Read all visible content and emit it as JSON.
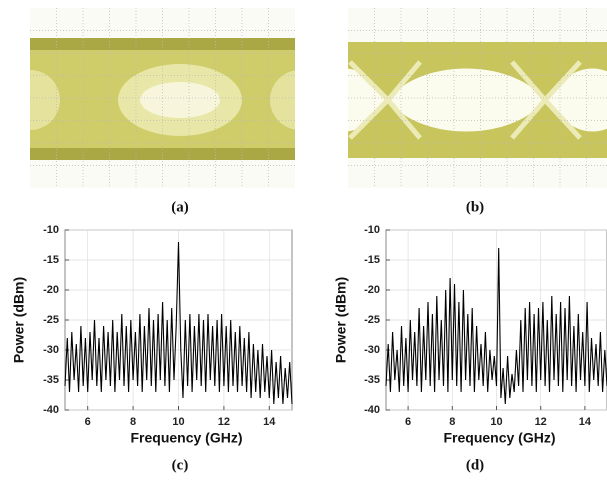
{
  "captions": [
    "(a)",
    "(b)",
    "(c)",
    "(d)"
  ],
  "chart_data": [
    {
      "type": "line",
      "xlabel": "Frequency (GHz)",
      "ylabel": "Power (dBm)",
      "color": "#000000",
      "grid": true,
      "xlim": [
        5,
        15
      ],
      "ylim": [
        -40,
        -10
      ],
      "xticks": [
        6,
        8,
        10,
        12,
        14
      ],
      "yticks": [
        -40,
        -35,
        -30,
        -25,
        -20,
        -15,
        -10
      ],
      "x": [
        5.0,
        5.1,
        5.2,
        5.3,
        5.4,
        5.5,
        5.6,
        5.7,
        5.8,
        5.9,
        6.0,
        6.1,
        6.2,
        6.3,
        6.4,
        6.5,
        6.6,
        6.7,
        6.8,
        6.9,
        7.0,
        7.1,
        7.2,
        7.3,
        7.4,
        7.5,
        7.6,
        7.7,
        7.8,
        7.9,
        8.0,
        8.1,
        8.2,
        8.3,
        8.4,
        8.5,
        8.6,
        8.7,
        8.8,
        8.9,
        9.0,
        9.1,
        9.2,
        9.3,
        9.4,
        9.5,
        9.6,
        9.7,
        9.8,
        9.9,
        10.0,
        10.1,
        10.2,
        10.3,
        10.4,
        10.5,
        10.6,
        10.7,
        10.8,
        10.9,
        11.0,
        11.1,
        11.2,
        11.3,
        11.4,
        11.5,
        11.6,
        11.7,
        11.8,
        11.9,
        12.0,
        12.1,
        12.2,
        12.3,
        12.4,
        12.5,
        12.6,
        12.7,
        12.8,
        12.9,
        13.0,
        13.1,
        13.2,
        13.3,
        13.4,
        13.5,
        13.6,
        13.7,
        13.8,
        13.9,
        14.0,
        14.1,
        14.2,
        14.3,
        14.4,
        14.5,
        14.6,
        14.7,
        14.8,
        14.9,
        15.0
      ],
      "values": [
        -36,
        -28,
        -37,
        -27,
        -35,
        -29,
        -37,
        -26,
        -36,
        -28,
        -37,
        -27,
        -35,
        -25,
        -36,
        -28,
        -37,
        -26,
        -35,
        -27,
        -36,
        -25,
        -37,
        -27,
        -35,
        -24,
        -36,
        -26,
        -37,
        -25,
        -35,
        -27,
        -36,
        -24,
        -37,
        -26,
        -35,
        -23,
        -36,
        -25,
        -37,
        -24,
        -35,
        -22,
        -36,
        -25,
        -37,
        -23,
        -35,
        -26,
        -12,
        -30,
        -38,
        -25,
        -36,
        -24,
        -37,
        -26,
        -35,
        -24,
        -36,
        -25,
        -37,
        -24,
        -35,
        -26,
        -36,
        -25,
        -37,
        -24,
        -36,
        -26,
        -37,
        -25,
        -36,
        -27,
        -37,
        -26,
        -36,
        -28,
        -37,
        -27,
        -38,
        -29,
        -37,
        -30,
        -38,
        -29,
        -37,
        -31,
        -38,
        -30,
        -39,
        -32,
        -38,
        -31,
        -39,
        -33,
        -38,
        -32,
        -39
      ]
    },
    {
      "type": "line",
      "xlabel": "Frequency (GHz)",
      "ylabel": "Power (dBm)",
      "color": "#000000",
      "grid": true,
      "xlim": [
        5,
        15
      ],
      "ylim": [
        -40,
        -10
      ],
      "xticks": [
        6,
        8,
        10,
        12,
        14
      ],
      "yticks": [
        -40,
        -35,
        -30,
        -25,
        -20,
        -15,
        -10
      ],
      "x": [
        5.0,
        5.1,
        5.2,
        5.3,
        5.4,
        5.5,
        5.6,
        5.7,
        5.8,
        5.9,
        6.0,
        6.1,
        6.2,
        6.3,
        6.4,
        6.5,
        6.6,
        6.7,
        6.8,
        6.9,
        7.0,
        7.1,
        7.2,
        7.3,
        7.4,
        7.5,
        7.6,
        7.7,
        7.8,
        7.9,
        8.0,
        8.1,
        8.2,
        8.3,
        8.4,
        8.5,
        8.6,
        8.7,
        8.8,
        8.9,
        9.0,
        9.1,
        9.2,
        9.3,
        9.4,
        9.5,
        9.6,
        9.7,
        9.8,
        9.9,
        10.0,
        10.1,
        10.2,
        10.3,
        10.4,
        10.5,
        10.6,
        10.7,
        10.8,
        10.9,
        11.0,
        11.1,
        11.2,
        11.3,
        11.4,
        11.5,
        11.6,
        11.7,
        11.8,
        11.9,
        12.0,
        12.1,
        12.2,
        12.3,
        12.4,
        12.5,
        12.6,
        12.7,
        12.8,
        12.9,
        13.0,
        13.1,
        13.2,
        13.3,
        13.4,
        13.5,
        13.6,
        13.7,
        13.8,
        13.9,
        14.0,
        14.1,
        14.2,
        14.3,
        14.4,
        14.5,
        14.6,
        14.7,
        14.8,
        14.9,
        15.0
      ],
      "values": [
        -36,
        -29,
        -37,
        -27,
        -35,
        -30,
        -37,
        -26,
        -36,
        -28,
        -37,
        -25,
        -35,
        -27,
        -36,
        -23,
        -37,
        -26,
        -35,
        -22,
        -36,
        -24,
        -37,
        -21,
        -35,
        -25,
        -36,
        -20,
        -37,
        -18,
        -35,
        -19,
        -36,
        -22,
        -37,
        -20,
        -35,
        -24,
        -36,
        -23,
        -37,
        -26,
        -35,
        -29,
        -36,
        -27,
        -37,
        -30,
        -35,
        -31,
        -36,
        -13,
        -38,
        -33,
        -39,
        -31,
        -38,
        -34,
        -37,
        -30,
        -36,
        -25,
        -37,
        -23,
        -35,
        -22,
        -36,
        -24,
        -37,
        -23,
        -35,
        -22,
        -36,
        -25,
        -37,
        -21,
        -35,
        -24,
        -36,
        -22,
        -37,
        -23,
        -35,
        -21,
        -36,
        -26,
        -37,
        -24,
        -35,
        -27,
        -36,
        -22,
        -37,
        -28,
        -35,
        -29,
        -36,
        -27,
        -37,
        -30,
        -36
      ]
    }
  ]
}
